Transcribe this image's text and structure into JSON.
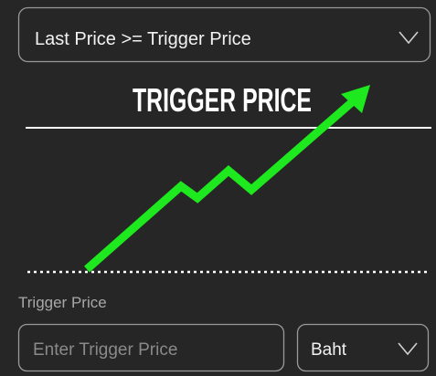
{
  "condition_select": {
    "value": "Last Price >= Trigger Price"
  },
  "illustration": {
    "title": "TRIGGER PRICE"
  },
  "trigger_field": {
    "label": "Trigger Price",
    "placeholder": "Enter Trigger Price"
  },
  "unit_select": {
    "value": "Baht"
  }
}
